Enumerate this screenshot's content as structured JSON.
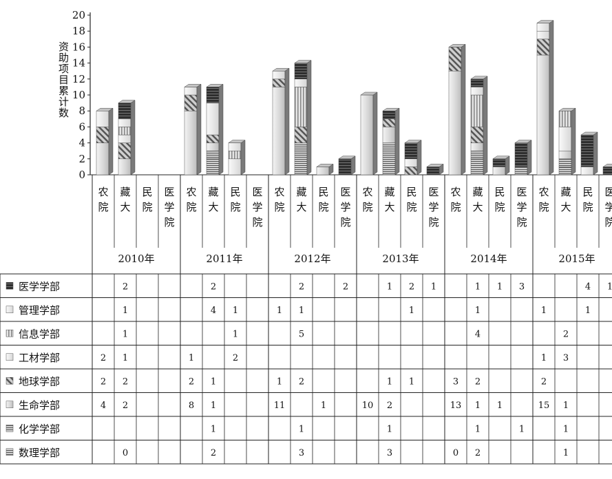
{
  "chart_data": {
    "type": "bar",
    "stacked": true,
    "ylabel": "资助项目累计数",
    "ylim": [
      0,
      20
    ],
    "yticks": [
      0,
      2,
      4,
      6,
      8,
      10,
      12,
      14,
      16,
      18,
      20
    ],
    "years": [
      "2010年",
      "2011年",
      "2012年",
      "2013年",
      "2014年",
      "2015年"
    ],
    "institutions": [
      "农院",
      "藏大",
      "民院",
      "医学院"
    ],
    "categories": [
      "农院",
      "藏大",
      "民院",
      "医学院",
      "农院",
      "藏大",
      "民院",
      "医学院",
      "农院",
      "藏大",
      "民院",
      "医学院",
      "农院",
      "藏大",
      "民院",
      "医学院",
      "农院",
      "藏大",
      "民院",
      "医学院",
      "农院",
      "藏大",
      "民院",
      "医学院"
    ],
    "series": [
      {
        "name": "医学学部",
        "values": [
          null,
          2,
          null,
          null,
          null,
          2,
          null,
          null,
          null,
          2,
          null,
          2,
          null,
          1,
          2,
          1,
          null,
          1,
          1,
          3,
          null,
          null,
          4,
          1
        ]
      },
      {
        "name": "管理学部",
        "values": [
          null,
          1,
          null,
          null,
          null,
          4,
          1,
          null,
          1,
          1,
          null,
          null,
          null,
          null,
          1,
          null,
          null,
          1,
          null,
          null,
          1,
          null,
          1,
          null
        ]
      },
      {
        "name": "信息学部",
        "values": [
          null,
          1,
          null,
          null,
          null,
          null,
          1,
          null,
          null,
          5,
          null,
          null,
          null,
          null,
          null,
          null,
          null,
          4,
          null,
          null,
          null,
          2,
          null,
          null
        ]
      },
      {
        "name": "工材学部",
        "values": [
          2,
          1,
          null,
          null,
          1,
          null,
          2,
          null,
          null,
          null,
          null,
          null,
          null,
          null,
          null,
          null,
          null,
          null,
          null,
          null,
          1,
          3,
          null,
          null
        ]
      },
      {
        "name": "地球学部",
        "values": [
          2,
          2,
          null,
          null,
          2,
          1,
          null,
          null,
          1,
          2,
          null,
          null,
          null,
          1,
          1,
          null,
          3,
          2,
          null,
          null,
          2,
          null,
          null,
          null
        ]
      },
      {
        "name": "生命学部",
        "values": [
          4,
          2,
          null,
          null,
          8,
          1,
          null,
          null,
          11,
          null,
          1,
          null,
          10,
          2,
          null,
          null,
          13,
          1,
          1,
          null,
          15,
          1,
          null,
          null
        ]
      },
      {
        "name": "化学学部",
        "values": [
          null,
          null,
          null,
          null,
          null,
          1,
          null,
          null,
          null,
          1,
          null,
          null,
          null,
          1,
          null,
          null,
          null,
          1,
          null,
          1,
          null,
          1,
          null,
          null
        ]
      },
      {
        "name": "数理学部",
        "values": [
          null,
          0,
          null,
          null,
          null,
          2,
          null,
          null,
          null,
          3,
          null,
          null,
          null,
          3,
          null,
          null,
          0,
          2,
          null,
          null,
          null,
          1,
          null,
          null
        ]
      }
    ],
    "colors": {
      "医学学部": "#3a3a3a",
      "管理学部": "#e2e2e2",
      "信息学部": "#b8b8b8",
      "工材学部": "#eeeeee",
      "地球学部": "#8c8c8c",
      "生命学部": "#d6d6d6",
      "化学学部": "#9a9a9a",
      "数理学部": "#bcbcbc"
    }
  }
}
